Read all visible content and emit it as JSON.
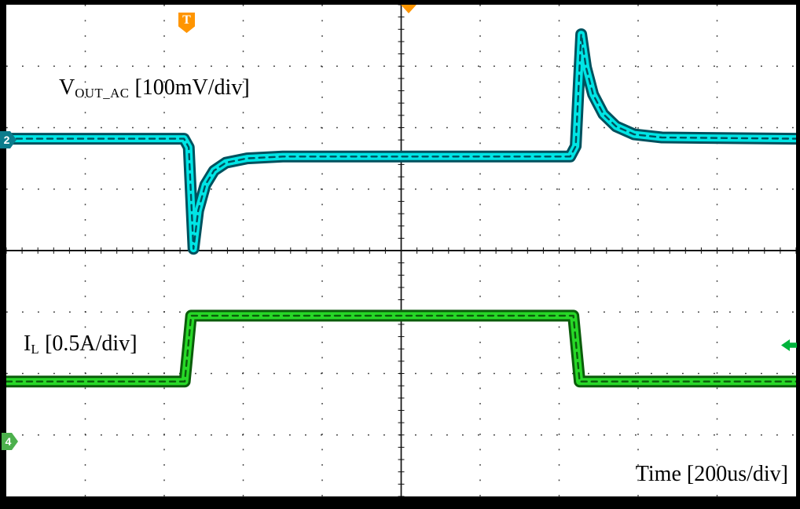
{
  "scope": {
    "bg_color": "#ffffff",
    "frame_color": "#000000",
    "grid": {
      "x_divs": 10,
      "y_divs": 8,
      "dot_color": "#3a3a3a",
      "axis_color": "#111111"
    },
    "labels": {
      "vout": {
        "main": "V",
        "sub": "OUT_AC",
        "rest": " [100mV/div]"
      },
      "il": {
        "main": "I",
        "sub": "L",
        "rest": " [0.5A/div]"
      },
      "time": "Time [200us/div]"
    },
    "markers": {
      "ch2": {
        "label": "2",
        "color": "#0b7c8c"
      },
      "ch4": {
        "label": "4",
        "color": "#4cb04c"
      },
      "trigger_flag": {
        "label": "T",
        "color": "#ff9500"
      },
      "trigger_position": {
        "color": "#ff9500"
      },
      "right_reference": {
        "color": "#00b33c"
      }
    }
  },
  "chart_data": {
    "type": "line",
    "x_axis": {
      "label": "Time",
      "per_div": "200us",
      "divs": 10
    },
    "y_divs": 8,
    "grid": "dotted, solid center axes with 1/5-div tick marks",
    "series": [
      {
        "name": "V_OUT_AC",
        "per_div": "100mV",
        "color": "#00e5e5",
        "edge_color": "#00515e",
        "description": "AC-coupled output voltage: undershoot dip at load step-up, overshoot spike at load release",
        "points_div": [
          [
            0,
            2.18
          ],
          [
            2.25,
            2.18
          ],
          [
            2.31,
            2.32
          ],
          [
            2.37,
            3.97
          ],
          [
            2.43,
            3.35
          ],
          [
            2.52,
            2.93
          ],
          [
            2.63,
            2.7
          ],
          [
            2.78,
            2.57
          ],
          [
            3.05,
            2.5
          ],
          [
            3.5,
            2.47
          ],
          [
            7.14,
            2.47
          ],
          [
            7.21,
            2.3
          ],
          [
            7.28,
            0.48
          ],
          [
            7.34,
            1.02
          ],
          [
            7.43,
            1.46
          ],
          [
            7.56,
            1.78
          ],
          [
            7.72,
            1.98
          ],
          [
            7.95,
            2.11
          ],
          [
            8.3,
            2.16
          ],
          [
            10,
            2.18
          ]
        ]
      },
      {
        "name": "I_L",
        "per_div": "0.5A",
        "color": "#27d827",
        "edge_color": "#0b5c0b",
        "description": "Load current step: low, steps high at 2.3 div, returns low at 7.25 div",
        "points_div": [
          [
            0,
            6.13
          ],
          [
            2.26,
            6.13
          ],
          [
            2.34,
            5.06
          ],
          [
            7.18,
            5.06
          ],
          [
            7.26,
            6.13
          ],
          [
            10,
            6.13
          ]
        ]
      }
    ]
  }
}
